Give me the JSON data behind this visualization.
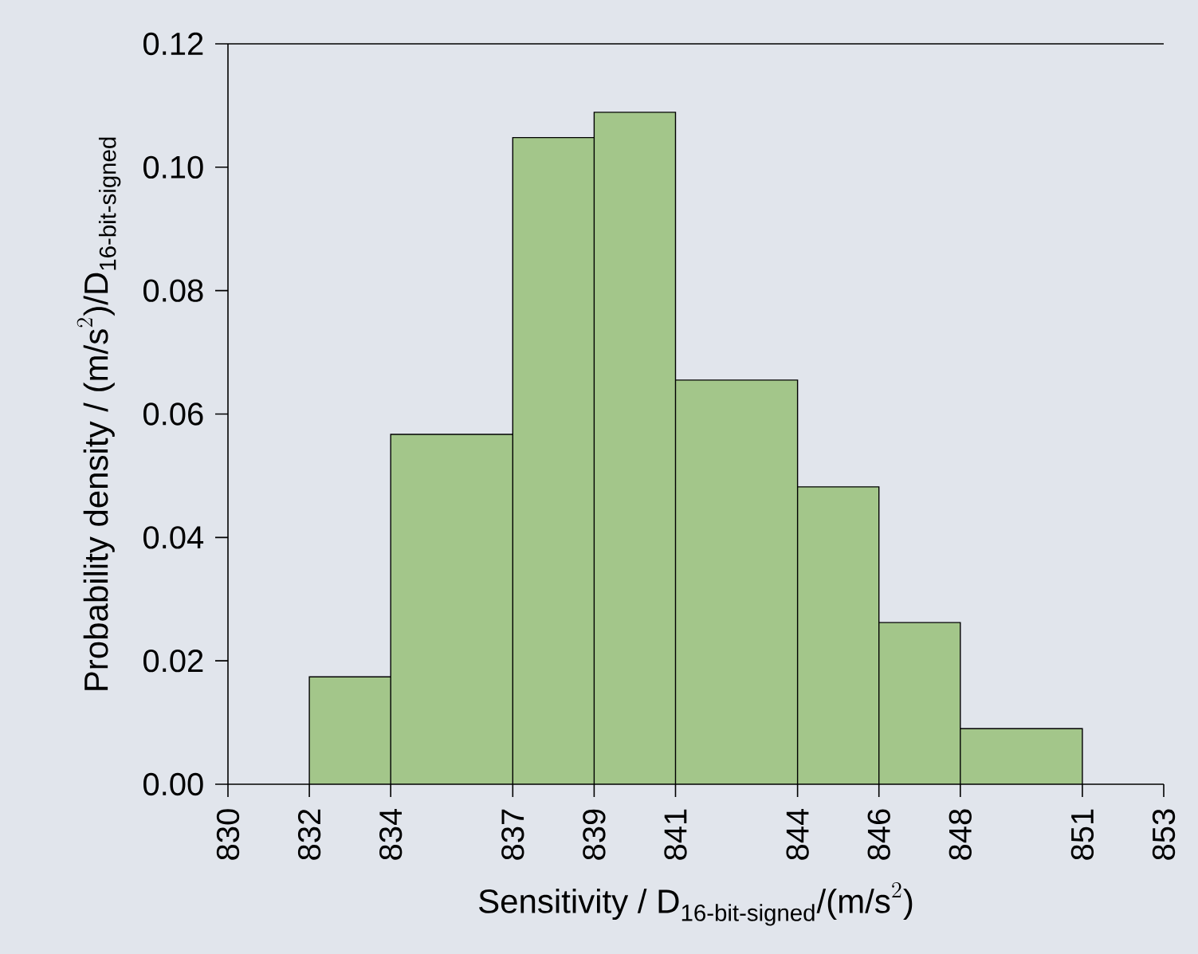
{
  "chart_data": {
    "type": "histogram",
    "xlabel": "\\text{Sensitivity / D}_{\\text{16-bit-signed}}\\text{/(m/s}^{2}\\text{)}",
    "ylabel": "\\text{Probability density / (m/s}^{2}\\text{)/D}_{\\text{16-bit-signed}}",
    "bins": [
      832,
      834,
      837,
      839,
      841,
      844,
      846,
      848,
      851
    ],
    "values": [
      0.0174,
      0.0567,
      0.1048,
      0.1089,
      0.0655,
      0.0482,
      0.0262,
      0.009
    ],
    "color": "#a3c68a",
    "xlim": [
      830,
      853
    ],
    "ylim": [
      0,
      0.12
    ],
    "xticks": [
      830,
      832,
      834,
      837,
      839,
      841,
      844,
      846,
      848,
      851,
      853
    ],
    "yticks": [
      {
        "value": 0,
        "label": "0.00"
      },
      {
        "value": 0.02,
        "label": "0.02"
      },
      {
        "value": 0.04,
        "label": "0.04"
      },
      {
        "value": 0.06,
        "label": "0.06"
      },
      {
        "value": 0.08,
        "label": "0.08"
      },
      {
        "value": 0.1,
        "label": "0.10"
      },
      {
        "value": 0.12,
        "label": "0.12"
      }
    ]
  }
}
